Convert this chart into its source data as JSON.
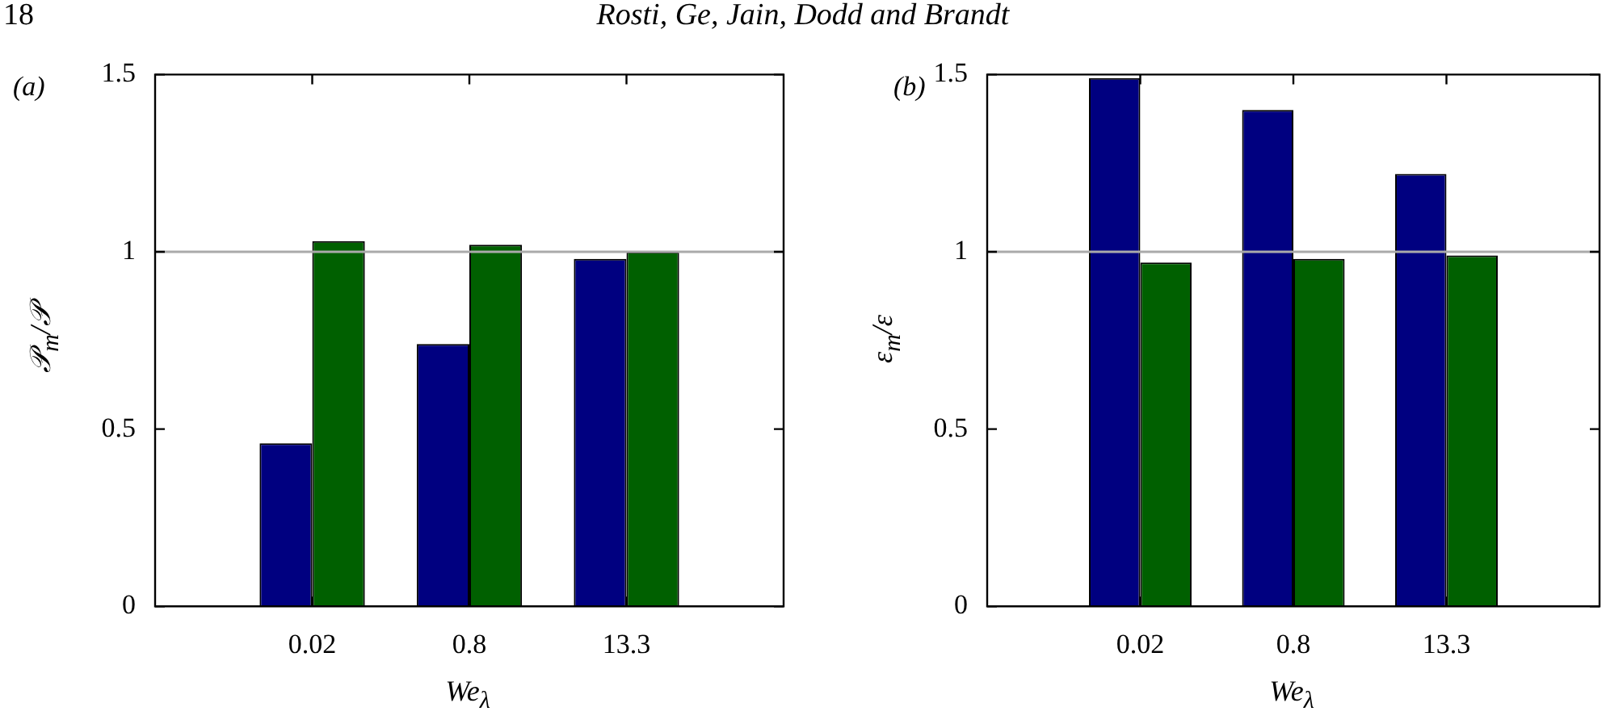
{
  "chart_data": [
    {
      "type": "bar",
      "categories": [
        "0.02",
        "0.8",
        "13.3"
      ],
      "series": [
        {
          "color": "#000080",
          "values": [
            0.46,
            0.74,
            0.98
          ]
        },
        {
          "color": "#006000",
          "values": [
            1.03,
            1.02,
            1.0
          ]
        }
      ],
      "ylim": [
        0,
        1.5
      ],
      "yticks": [
        0,
        0.5,
        1,
        1.5
      ],
      "xlabel": "We$_{λ}$",
      "ylabel": "𝒫$_{m}$/𝒫",
      "ref_lines": [
        {
          "axis": "y",
          "value": 1,
          "color": "#aaaaaa"
        }
      ],
      "annotations": [
        "18",
        "Rosti, Ge, Jain, Dodd and Brandt",
        "(a)"
      ],
      "grid": false,
      "legend": false
    },
    {
      "type": "bar",
      "categories": [
        "0.02",
        "0.8",
        "13.3"
      ],
      "series": [
        {
          "color": "#000080",
          "values": [
            1.49,
            1.4,
            1.22
          ]
        },
        {
          "color": "#006000",
          "values": [
            0.97,
            0.98,
            0.99
          ]
        }
      ],
      "ylim": [
        0,
        1.5
      ],
      "yticks": [
        0,
        0.5,
        1,
        1.5
      ],
      "xlabel": "We$_{λ}$",
      "ylabel": "ε$_{m}$/ε",
      "ref_lines": [
        {
          "axis": "y",
          "value": 1,
          "color": "#aaaaaa"
        }
      ],
      "annotations": [
        "(b)"
      ],
      "grid": false,
      "legend": false
    }
  ]
}
